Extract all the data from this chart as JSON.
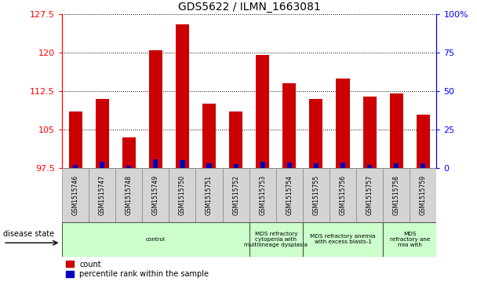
{
  "title": "GDS5622 / ILMN_1663081",
  "samples": [
    "GSM1515746",
    "GSM1515747",
    "GSM1515748",
    "GSM1515749",
    "GSM1515750",
    "GSM1515751",
    "GSM1515752",
    "GSM1515753",
    "GSM1515754",
    "GSM1515755",
    "GSM1515756",
    "GSM1515757",
    "GSM1515758",
    "GSM1515759"
  ],
  "counts": [
    108.5,
    111.0,
    103.5,
    120.5,
    125.5,
    110.0,
    108.5,
    119.5,
    114.0,
    111.0,
    115.0,
    111.5,
    112.0,
    108.0
  ],
  "percentiles": [
    2.0,
    4.0,
    1.5,
    5.5,
    5.0,
    3.0,
    2.5,
    4.0,
    3.5,
    3.0,
    3.5,
    2.0,
    3.0,
    3.0
  ],
  "y_min": 97.5,
  "y_max": 127.5,
  "y_ticks": [
    97.5,
    105.0,
    112.5,
    120.0,
    127.5
  ],
  "y2_ticks": [
    0,
    25,
    50,
    75,
    100
  ],
  "bar_color": "#cc0000",
  "pct_color": "#0000bb",
  "sample_box_color": "#d4d4d4",
  "disease_groups": [
    {
      "label": "control",
      "start": 0,
      "end": 7
    },
    {
      "label": "MDS refractory\ncytopenia with\nmultilineage dysplasia",
      "start": 7,
      "end": 9
    },
    {
      "label": "MDS refractory anemia\nwith excess blasts-1",
      "start": 9,
      "end": 12
    },
    {
      "label": "MDS\nrefractory ane\nmia with",
      "start": 12,
      "end": 14
    }
  ],
  "group_color": "#ccffcc",
  "disease_state_label": "disease state",
  "legend_count": "count",
  "legend_pct": "percentile rank within the sample"
}
